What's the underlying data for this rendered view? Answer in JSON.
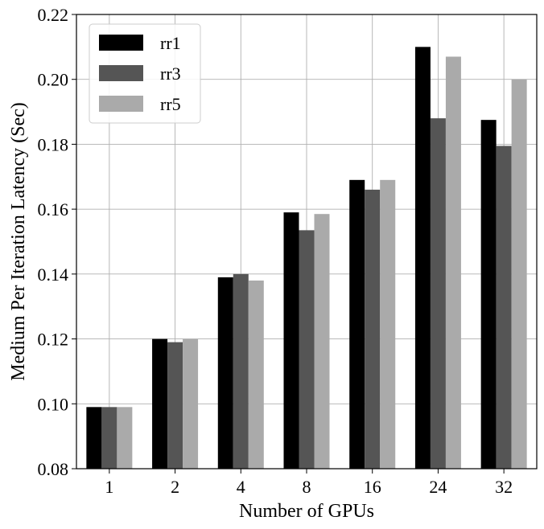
{
  "chart_data": {
    "type": "bar",
    "title": "",
    "xlabel": "Number of GPUs",
    "ylabel": "Medium Per Iteration Latency (Sec)",
    "categories": [
      "1",
      "2",
      "4",
      "8",
      "16",
      "24",
      "32"
    ],
    "series": [
      {
        "name": "rr1",
        "color": "#000000",
        "values": [
          0.099,
          0.12,
          0.139,
          0.159,
          0.169,
          0.21,
          0.1875
        ]
      },
      {
        "name": "rr3",
        "color": "#555555",
        "values": [
          0.099,
          0.119,
          0.14,
          0.1535,
          0.166,
          0.188,
          0.1795
        ]
      },
      {
        "name": "rr5",
        "color": "#aaaaaa",
        "values": [
          0.099,
          0.12,
          0.138,
          0.1585,
          0.169,
          0.207,
          0.2
        ]
      }
    ],
    "ylim": [
      0.08,
      0.22
    ],
    "yticks": [
      "0.08",
      "0.10",
      "0.12",
      "0.14",
      "0.16",
      "0.18",
      "0.20",
      "0.22"
    ],
    "grid": true,
    "legend_position": "top-left"
  }
}
